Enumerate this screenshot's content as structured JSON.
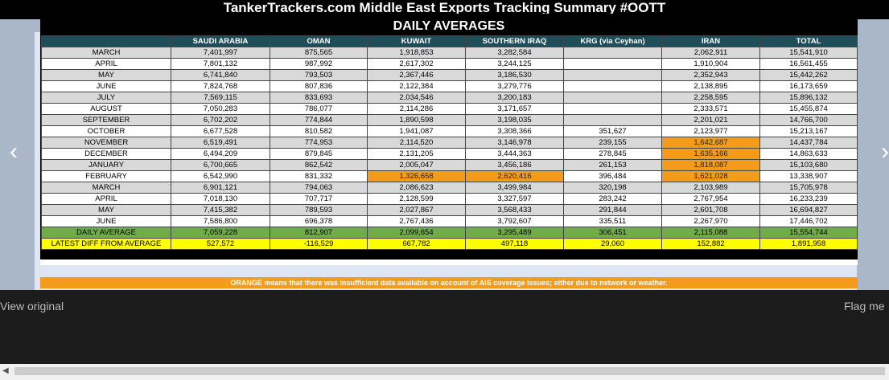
{
  "page_title": "TankerTrackers.com Middle East Exports Tracking Summary #OOTT",
  "table": {
    "title": "DAILY AVERAGES",
    "columns": [
      "",
      "SAUDI ARABIA",
      "OMAN",
      "KUWAIT",
      "SOUTHERN IRAQ",
      "KRG (via Ceyhan)",
      "IRAN",
      "TOTAL"
    ],
    "rows": [
      {
        "label": "MARCH",
        "values": [
          "7,401,997",
          "875,565",
          "1,918,853",
          "3,282,584",
          "",
          "2,062,911",
          "15,541,910"
        ],
        "orange": [],
        "shade": "gray"
      },
      {
        "label": "APRIL",
        "values": [
          "7,801,132",
          "987,992",
          "2,617,302",
          "3,244,125",
          "",
          "1,910,904",
          "16,561,455"
        ],
        "orange": [],
        "shade": "white"
      },
      {
        "label": "MAY",
        "values": [
          "6,741,840",
          "793,503",
          "2,367,446",
          "3,186,530",
          "",
          "2,352,943",
          "15,442,262"
        ],
        "orange": [],
        "shade": "gray"
      },
      {
        "label": "JUNE",
        "values": [
          "7,824,768",
          "807,836",
          "2,122,384",
          "3,279,776",
          "",
          "2,138,895",
          "16,173,659"
        ],
        "orange": [],
        "shade": "white"
      },
      {
        "label": "JULY",
        "values": [
          "7,569,115",
          "833,693",
          "2,034,546",
          "3,200,183",
          "",
          "2,258,595",
          "15,896,132"
        ],
        "orange": [],
        "shade": "gray"
      },
      {
        "label": "AUGUST",
        "values": [
          "7,050,283",
          "786,077",
          "2,114,286",
          "3,171,657",
          "",
          "2,333,571",
          "15,455,874"
        ],
        "orange": [],
        "shade": "white"
      },
      {
        "label": "SEPTEMBER",
        "values": [
          "6,702,202",
          "774,844",
          "1,890,598",
          "3,198,035",
          "",
          "2,201,021",
          "14,766,700"
        ],
        "orange": [],
        "shade": "gray"
      },
      {
        "label": "OCTOBER",
        "values": [
          "6,677,528",
          "810,582",
          "1,941,087",
          "3,308,366",
          "351,627",
          "2,123,977",
          "15,213,167"
        ],
        "orange": [],
        "shade": "white"
      },
      {
        "label": "NOVEMBER",
        "values": [
          "6,519,491",
          "774,953",
          "2,114,520",
          "3,146,978",
          "239,155",
          "1,642,687",
          "14,437,784"
        ],
        "orange": [
          5
        ],
        "shade": "gray"
      },
      {
        "label": "DECEMBER",
        "values": [
          "6,494,209",
          "879,845",
          "2,131,205",
          "3,444,363",
          "278,845",
          "1,635,166",
          "14,863,633"
        ],
        "orange": [
          5
        ],
        "shade": "white"
      },
      {
        "label": "JANUARY",
        "values": [
          "6,700,665",
          "862,542",
          "2,005,047",
          "3,456,186",
          "261,153",
          "1,818,087",
          "15,103,680"
        ],
        "orange": [
          5
        ],
        "shade": "gray"
      },
      {
        "label": "FEBRUARY",
        "values": [
          "6,542,990",
          "831,332",
          "1,326,658",
          "2,620,416",
          "396,484",
          "1,621,028",
          "13,338,907"
        ],
        "orange": [
          2,
          3,
          5
        ],
        "shade": "white"
      },
      {
        "label": "MARCH",
        "values": [
          "6,901,121",
          "794,063",
          "2,086,623",
          "3,499,984",
          "320,198",
          "2,103,989",
          "15,705,978"
        ],
        "orange": [],
        "shade": "gray"
      },
      {
        "label": "APRIL",
        "values": [
          "7,018,130",
          "707,717",
          "2,128,599",
          "3,327,597",
          "283,242",
          "2,767,954",
          "16,233,239"
        ],
        "orange": [],
        "shade": "white"
      },
      {
        "label": "MAY",
        "values": [
          "7,415,382",
          "789,593",
          "2,027,867",
          "3,568,433",
          "291,844",
          "2,601,708",
          "16,694,827"
        ],
        "orange": [],
        "shade": "gray"
      },
      {
        "label": "JUNE",
        "values": [
          "7,586,800",
          "696,378",
          "2,767,436",
          "3,792,607",
          "335,511",
          "2,267,970",
          "17,446,702"
        ],
        "orange": [],
        "shade": "white"
      }
    ],
    "average": {
      "label": "DAILY AVERAGE",
      "values": [
        "7,059,228",
        "812,907",
        "2,099,654",
        "3,295,489",
        "306,451",
        "2,115,088",
        "15,554,744"
      ]
    },
    "diff": {
      "label": "LATEST DIFF FROM AVERAGE",
      "values": [
        "527,572",
        "-116,529",
        "667,782",
        "497,118",
        "29,060",
        "152,882",
        "1,891,958"
      ]
    }
  },
  "note": "ORANGE means that there was insufficient data available on account of AIS coverage issues; either due to network or weather.",
  "nav": {
    "prev": "‹",
    "next": "›"
  },
  "footer": {
    "view_original": "View original",
    "flag": "Flag me"
  },
  "colors": {
    "header": "#1f4e5a",
    "orange": "#f59b1c",
    "average": "#70ad47",
    "diff": "#ffff00"
  }
}
